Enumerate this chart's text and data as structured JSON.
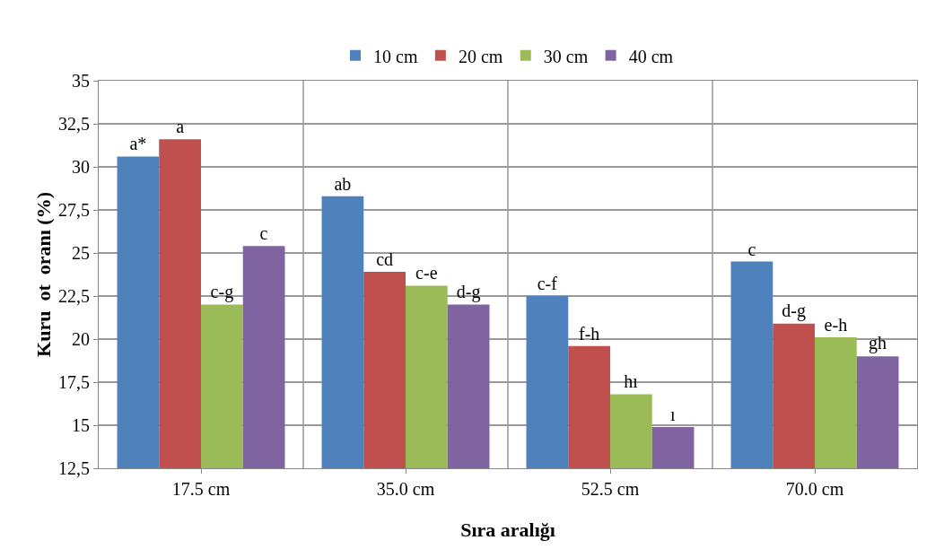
{
  "chart_data": {
    "type": "bar",
    "xlabel": "Sıra aralığı",
    "ylabel": "Kuru  ot  oranı (%)",
    "categories": [
      "17.5 cm",
      "35.0 cm",
      "52.5 cm",
      "70.0 cm"
    ],
    "series": [
      {
        "name": "10 cm",
        "color": "#4f81bd",
        "values": [
          30.6,
          28.3,
          22.5,
          24.5
        ],
        "value_labels": [
          "a*",
          "ab",
          "c-f",
          "c"
        ]
      },
      {
        "name": "20 cm",
        "color": "#c0504d",
        "values": [
          31.6,
          23.9,
          19.6,
          20.9
        ],
        "value_labels": [
          "a",
          "cd",
          "f-h",
          "d-g"
        ]
      },
      {
        "name": "30 cm",
        "color": "#9bbb59",
        "values": [
          22.0,
          23.1,
          16.8,
          20.1
        ],
        "value_labels": [
          "c-g",
          "c-e",
          "hı",
          "e-h"
        ]
      },
      {
        "name": "40 cm",
        "color": "#8064a2",
        "values": [
          25.4,
          22.0,
          14.9,
          19.0
        ],
        "value_labels": [
          "c",
          "d-g",
          "ı",
          "gh"
        ]
      }
    ],
    "ylim": [
      12.5,
      35
    ],
    "yticks": [
      {
        "value": 12.5,
        "label": "12,5"
      },
      15,
      {
        "value": 17.5,
        "label": "17,5"
      },
      20,
      {
        "value": 22.5,
        "label": "22,5"
      },
      25,
      {
        "value": 27.5,
        "label": "27,5"
      },
      30,
      {
        "value": 32.5,
        "label": "32,5"
      },
      35
    ],
    "grid": true,
    "legend": "top"
  }
}
